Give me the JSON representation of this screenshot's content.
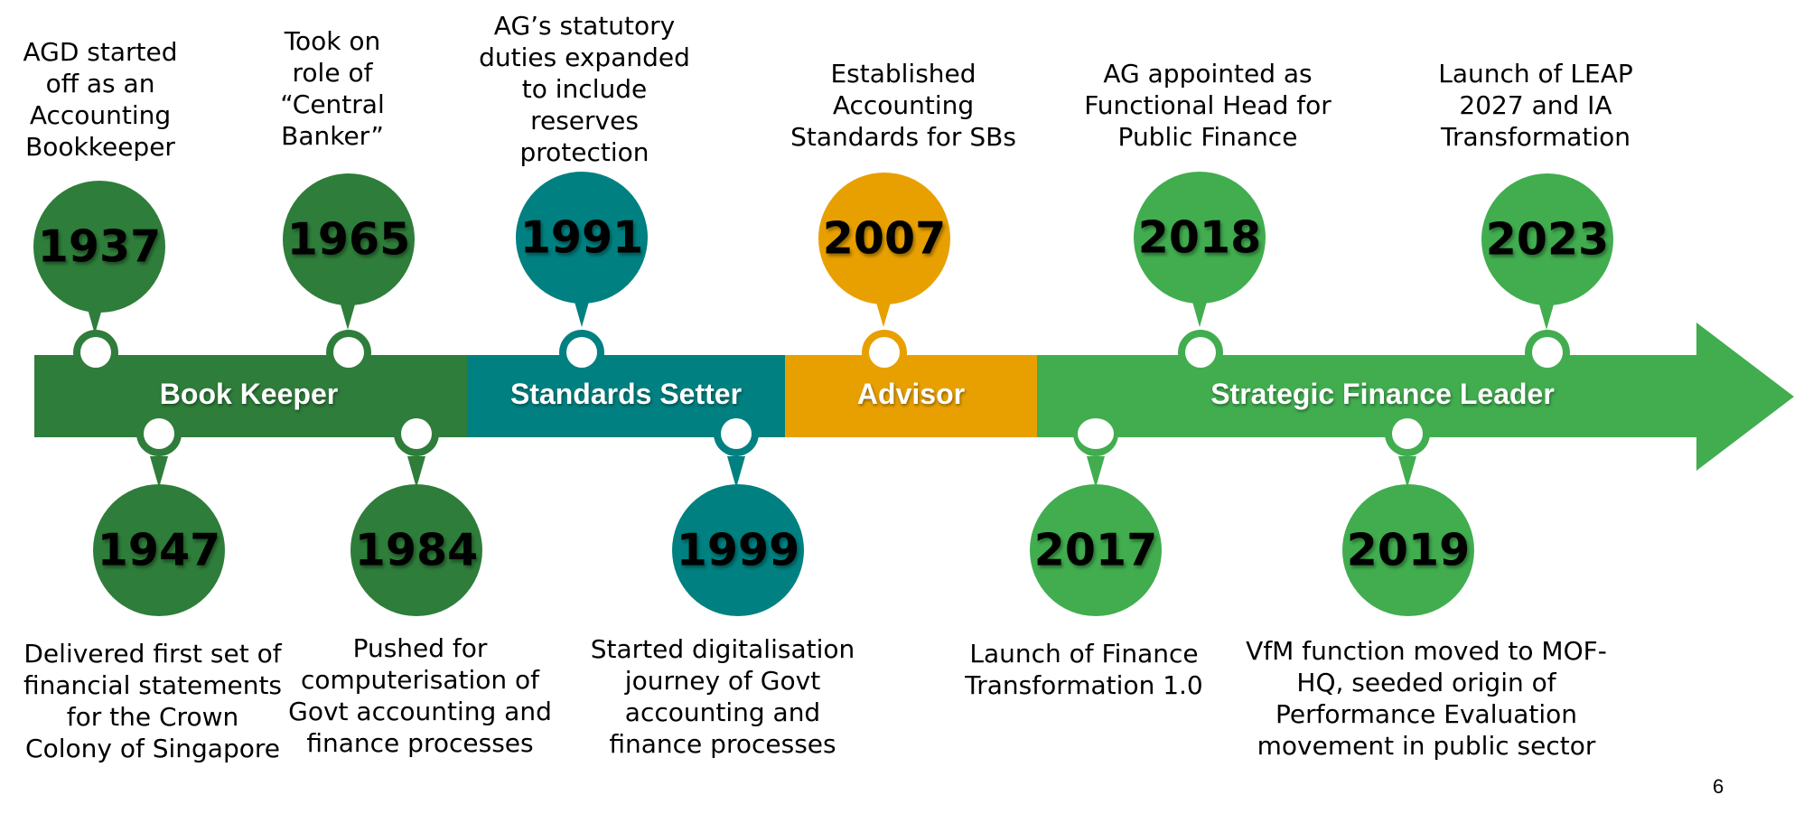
{
  "colors": {
    "book_keeper": "#2e7d3a",
    "standards_setter": "#008080",
    "advisor": "#e8a000",
    "strategic": "#41ad4f"
  },
  "phases": [
    {
      "label": "Book Keeper"
    },
    {
      "label": "Standards Setter"
    },
    {
      "label": "Advisor"
    },
    {
      "label": "Strategic Finance Leader"
    }
  ],
  "milestones": [
    {
      "year": "1937",
      "text": "AGD started\noff as an\nAccounting\nBookkeeper",
      "phase": "book_keeper"
    },
    {
      "year": "1947",
      "text": "Delivered first set of\nfinancial statements\nfor the Crown\nColony of Singapore",
      "phase": "book_keeper"
    },
    {
      "year": "1965",
      "text": "Took on\nrole of\n“Central\nBanker”",
      "phase": "book_keeper"
    },
    {
      "year": "1984",
      "text": "Pushed for\ncomputerisation of\nGovt accounting and\nfinance processes",
      "phase": "book_keeper"
    },
    {
      "year": "1991",
      "text": "AG’s statutory\nduties expanded\nto include\nreserves\nprotection",
      "phase": "standards_setter"
    },
    {
      "year": "1999",
      "text": "Started digitalisation\njourney of Govt\naccounting and\nfinance processes",
      "phase": "standards_setter"
    },
    {
      "year": "2007",
      "text": "Established\nAccounting\nStandards for SBs",
      "phase": "advisor"
    },
    {
      "year": "2017",
      "text": "Launch of Finance\nTransformation 1.0",
      "phase": "strategic"
    },
    {
      "year": "2018",
      "text": "AG appointed as\nFunctional Head for\nPublic Finance",
      "phase": "strategic"
    },
    {
      "year": "2019",
      "text": "VfM function moved to MOF-\nHQ, seeded origin of\nPerformance Evaluation\nmovement in public sector",
      "phase": "strategic"
    },
    {
      "year": "2023",
      "text": "Launch of LEAP\n2027 and IA\nTransformation",
      "phase": "strategic"
    }
  ],
  "page_number": "6"
}
